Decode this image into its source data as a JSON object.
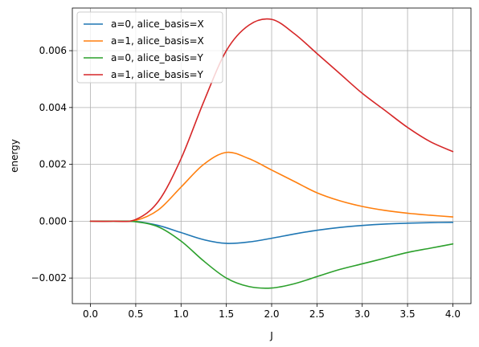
{
  "chart_data": {
    "type": "line",
    "title": "",
    "xlabel": "J",
    "ylabel": "energy",
    "xlim": [
      -0.2,
      4.2
    ],
    "ylim": [
      -0.0029,
      0.0075
    ],
    "grid": true,
    "legend_position": "top-left",
    "x_ticks": [
      0.0,
      0.5,
      1.0,
      1.5,
      2.0,
      2.5,
      3.0,
      3.5,
      4.0
    ],
    "x_tick_labels": [
      "0.0",
      "0.5",
      "1.0",
      "1.5",
      "2.0",
      "2.5",
      "3.0",
      "3.5",
      "4.0"
    ],
    "y_ticks": [
      -0.002,
      0.0,
      0.002,
      0.004,
      0.006
    ],
    "y_tick_labels": [
      "−0.002",
      "0.000",
      "0.002",
      "0.004",
      "0.006"
    ],
    "x": [
      0.0,
      0.25,
      0.5,
      0.75,
      1.0,
      1.25,
      1.5,
      1.75,
      2.0,
      2.25,
      2.5,
      2.75,
      3.0,
      3.25,
      3.5,
      3.75,
      4.0
    ],
    "series": [
      {
        "name": "a=0, alice_basis=X",
        "color": "#1f77b4",
        "values": [
          0.0,
          0.0,
          -1e-05,
          -0.00015,
          -0.0004,
          -0.00065,
          -0.00078,
          -0.00073,
          -0.0006,
          -0.00045,
          -0.00032,
          -0.00022,
          -0.00015,
          -0.0001,
          -7e-05,
          -5e-05,
          -4e-05
        ]
      },
      {
        "name": "a=1, alice_basis=X",
        "color": "#ff7f0e",
        "values": [
          0.0,
          0.0,
          3e-05,
          0.0004,
          0.0012,
          0.002,
          0.00242,
          0.0022,
          0.0018,
          0.0014,
          0.001,
          0.00072,
          0.00052,
          0.00038,
          0.00028,
          0.00021,
          0.00015
        ]
      },
      {
        "name": "a=0, alice_basis=Y",
        "color": "#2ca02c",
        "values": [
          0.0,
          0.0,
          -2e-05,
          -0.0002,
          -0.0007,
          -0.0014,
          -0.002,
          -0.0023,
          -0.00235,
          -0.0022,
          -0.00195,
          -0.0017,
          -0.0015,
          -0.0013,
          -0.0011,
          -0.00095,
          -0.0008
        ]
      },
      {
        "name": "a=1, alice_basis=Y",
        "color": "#d62728",
        "values": [
          0.0,
          0.0,
          6e-05,
          0.0007,
          0.0022,
          0.0042,
          0.006,
          0.0069,
          0.0071,
          0.0066,
          0.0059,
          0.0052,
          0.0045,
          0.0039,
          0.0033,
          0.0028,
          0.00245
        ]
      }
    ]
  }
}
